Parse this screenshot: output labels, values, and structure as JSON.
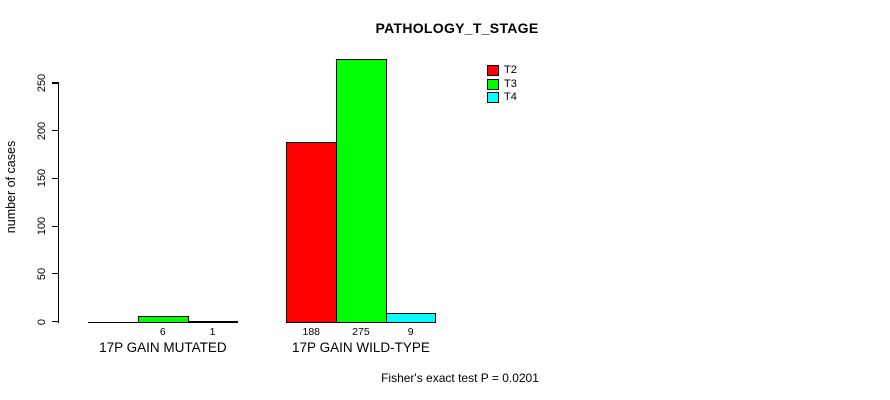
{
  "chart_data": {
    "type": "bar",
    "title": "PATHOLOGY_T_STAGE",
    "ylabel": "number of cases",
    "xlabel": "",
    "annotation": "Fisher's exact test P = 0.0201",
    "grid": false,
    "legend_position": "top-right",
    "ylim": [
      0,
      280
    ],
    "yticks": [
      "0",
      "50",
      "100",
      "150",
      "200",
      "250"
    ],
    "ytick_values": [
      0,
      50,
      100,
      150,
      200,
      250
    ],
    "categories": [
      "17P GAIN MUTATED",
      "17P GAIN WILD-TYPE"
    ],
    "series": [
      {
        "name": "T2",
        "color": "#ff0000",
        "values": [
          0,
          188
        ],
        "value_labels": [
          "",
          "188"
        ]
      },
      {
        "name": "T3",
        "color": "#00ff00",
        "values": [
          6,
          275
        ],
        "value_labels": [
          "6",
          "275"
        ]
      },
      {
        "name": "T4",
        "color": "#00ffff",
        "values": [
          1,
          9
        ],
        "value_labels": [
          "1",
          "9"
        ]
      }
    ]
  }
}
